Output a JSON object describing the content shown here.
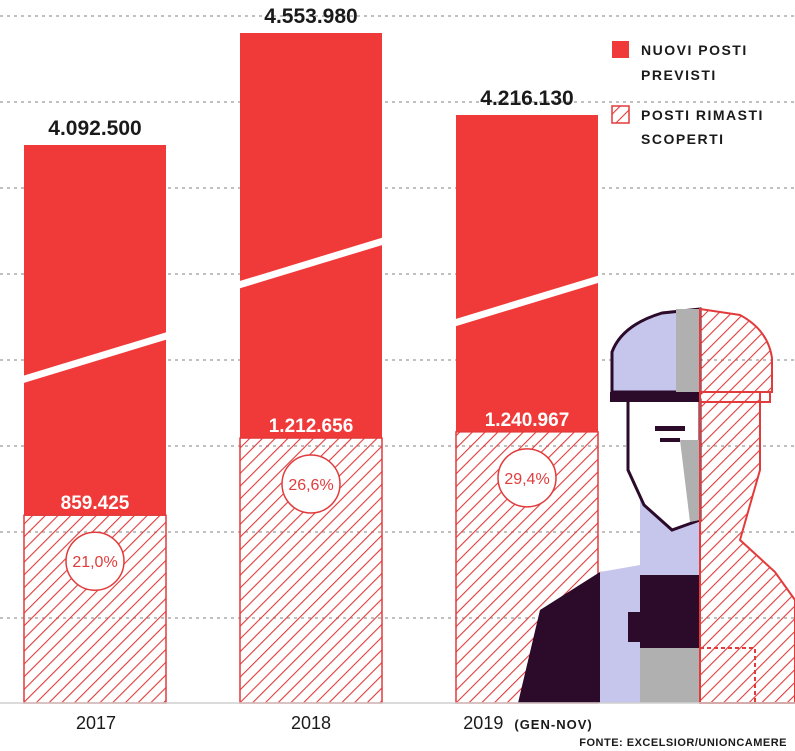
{
  "chart_data": {
    "type": "bar",
    "stacked": true,
    "categories": [
      "2017",
      "2018",
      "2019"
    ],
    "category_note": "(GEN-NOV)",
    "series": [
      {
        "name": "NUOVI POSTI PREVISTI",
        "values": [
          4092500,
          4553980,
          4216130
        ],
        "value_labels": [
          "4.092.500",
          "4.553.980",
          "4.216.130"
        ]
      },
      {
        "name": "POSTI RIMASTI SCOPERTI",
        "values": [
          859425,
          1212656,
          1240967
        ],
        "value_labels": [
          "859.425",
          "1.212.656",
          "1.240.967"
        ]
      }
    ],
    "percent_labels": [
      "21,0%",
      "26,6%",
      "29,4%"
    ],
    "axis_broken": true,
    "grid": "dashed-horizontal",
    "legend": "top-right",
    "legend_entries": [
      "NUOVI POSTI",
      "PREVISTI",
      "POSTI RIMASTI",
      "SCOPERTI"
    ],
    "source": "FONTE: EXCELSIOR/UNIONCAMERE",
    "colors": {
      "red": "#f03a3a",
      "dark": "#1a1a1a",
      "hatch": "#e23b3b",
      "lavender": "#c6c6ec",
      "plum": "#2b0a2a",
      "gray": "#aaaaaa"
    }
  }
}
